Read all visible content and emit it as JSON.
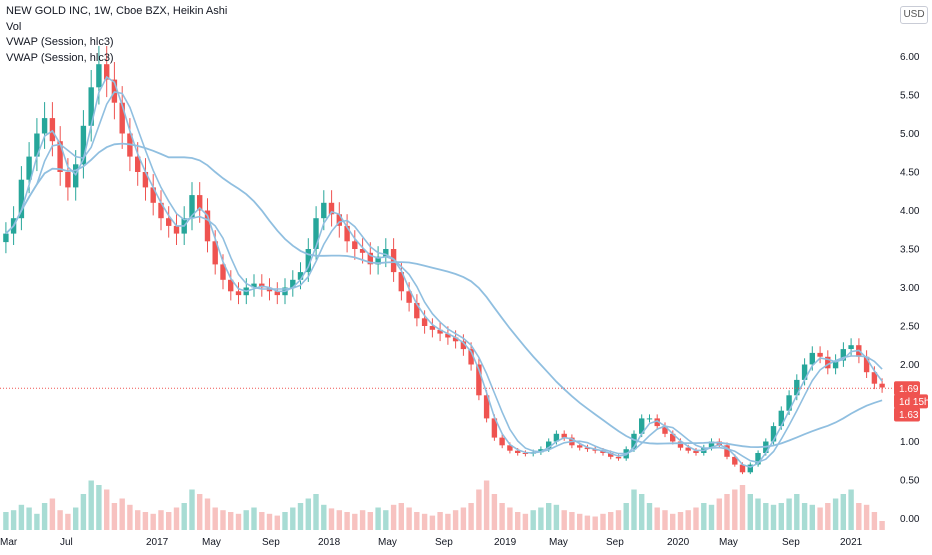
{
  "legend": {
    "title": "NEW GOLD INC, 1W, Cboe BZX, Heikin Ashi",
    "vol": "Vol",
    "vwap1": "VWAP (Session, hlc3)",
    "vwap2": "VWAP (Session, hlc3)"
  },
  "currency_label": "USD",
  "colors": {
    "up": "#26a69a",
    "down": "#ef5350",
    "ma": "#90bfe0",
    "vol_up": "#a8dcd4",
    "vol_down": "#f7c2c0",
    "price_line": "#ef5350"
  },
  "chart_data": {
    "type": "candlestick",
    "style": "Heikin Ashi",
    "interval": "1W",
    "ylim": [
      -0.15,
      6.5
    ],
    "y_ticks": [
      "0.00",
      "0.50",
      "1.00",
      "1.50",
      "2.00",
      "2.50",
      "3.00",
      "3.50",
      "4.00",
      "4.50",
      "5.00",
      "5.50",
      "6.00"
    ],
    "x_ticks": [
      "Mar",
      "Jul",
      "2017",
      "May",
      "Sep",
      "2018",
      "May",
      "Sep",
      "2019",
      "May",
      "Sep",
      "2020",
      "May",
      "Sep",
      "2021"
    ],
    "grid": false,
    "price_tags": [
      {
        "label": "1.69",
        "value": 1.69
      },
      {
        "label": "1d 15h",
        "value": 1.52
      },
      {
        "label": "1.63",
        "value": 1.35
      }
    ],
    "close_series": [
      3.7,
      3.9,
      4.4,
      4.7,
      5.0,
      5.2,
      4.9,
      4.5,
      4.3,
      4.6,
      5.1,
      5.6,
      5.9,
      5.7,
      5.4,
      5.0,
      4.7,
      4.5,
      4.3,
      4.1,
      3.9,
      3.8,
      3.7,
      3.9,
      4.2,
      4.0,
      3.6,
      3.3,
      3.1,
      2.95,
      2.9,
      3.0,
      3.05,
      3.0,
      2.95,
      2.9,
      3.0,
      3.1,
      3.2,
      3.5,
      3.9,
      4.1,
      3.95,
      3.8,
      3.6,
      3.5,
      3.45,
      3.3,
      3.4,
      3.5,
      3.2,
      2.95,
      2.8,
      2.6,
      2.5,
      2.45,
      2.4,
      2.35,
      2.3,
      2.2,
      2.0,
      1.6,
      1.3,
      1.05,
      0.95,
      0.88,
      0.85,
      0.84,
      0.86,
      0.9,
      1.0,
      1.1,
      1.05,
      0.95,
      0.92,
      0.9,
      0.88,
      0.85,
      0.8,
      0.78,
      0.9,
      1.1,
      1.3,
      1.3,
      1.2,
      1.1,
      1.0,
      0.92,
      0.88,
      0.85,
      0.92,
      1.0,
      0.95,
      0.8,
      0.7,
      0.6,
      0.7,
      0.85,
      1.0,
      1.2,
      1.4,
      1.6,
      1.8,
      2.0,
      2.15,
      2.1,
      1.95,
      2.05,
      2.2,
      2.25,
      2.1,
      1.9,
      1.75,
      1.7
    ],
    "vol_series": [
      0.2,
      0.22,
      0.28,
      0.25,
      0.18,
      0.3,
      0.35,
      0.22,
      0.18,
      0.25,
      0.4,
      0.55,
      0.5,
      0.45,
      0.3,
      0.35,
      0.28,
      0.22,
      0.2,
      0.18,
      0.22,
      0.2,
      0.25,
      0.3,
      0.45,
      0.4,
      0.35,
      0.25,
      0.22,
      0.2,
      0.18,
      0.22,
      0.25,
      0.2,
      0.18,
      0.16,
      0.2,
      0.25,
      0.3,
      0.35,
      0.4,
      0.28,
      0.24,
      0.22,
      0.2,
      0.18,
      0.22,
      0.2,
      0.25,
      0.22,
      0.28,
      0.3,
      0.25,
      0.2,
      0.18,
      0.16,
      0.2,
      0.18,
      0.22,
      0.25,
      0.3,
      0.45,
      0.55,
      0.4,
      0.3,
      0.25,
      0.2,
      0.18,
      0.22,
      0.25,
      0.3,
      0.28,
      0.22,
      0.2,
      0.18,
      0.16,
      0.15,
      0.18,
      0.2,
      0.22,
      0.3,
      0.45,
      0.4,
      0.3,
      0.25,
      0.22,
      0.18,
      0.2,
      0.22,
      0.25,
      0.3,
      0.28,
      0.35,
      0.4,
      0.45,
      0.5,
      0.4,
      0.35,
      0.3,
      0.28,
      0.3,
      0.35,
      0.4,
      0.3,
      0.28,
      0.25,
      0.3,
      0.35,
      0.4,
      0.45,
      0.3,
      0.28,
      0.2,
      0.1
    ]
  }
}
